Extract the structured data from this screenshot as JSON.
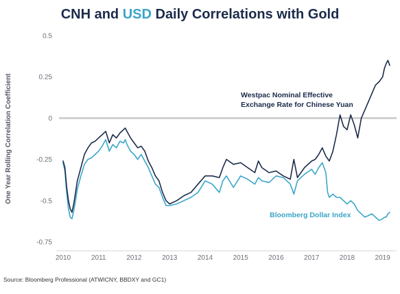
{
  "chart_data": {
    "type": "line",
    "title_parts": [
      "CNH",
      " and ",
      "USD",
      " Daily Correlations with Gold"
    ],
    "ylabel": "One Year Rolling Correlation Coefficient",
    "source": "Source: Bloomberg Professional (ATWICNY, BBDXY and GC1)",
    "xlim": [
      2010,
      2019.2
    ],
    "ylim": [
      -0.75,
      0.5
    ],
    "x_ticks": [
      2010,
      2011,
      2012,
      2013,
      2014,
      2015,
      2016,
      2017,
      2018,
      2019
    ],
    "x_tick_labels": [
      "2010",
      "2011",
      "2012",
      "2013",
      "2014",
      "2015",
      "2016",
      "2017",
      "2018",
      "2019"
    ],
    "y_ticks": [
      0.5,
      0.25,
      0,
      -0.25,
      -0.5,
      -0.75
    ],
    "y_tick_labels": [
      "0.5",
      "0.25",
      "0",
      "-0.25",
      "-0.5",
      "-0.75"
    ],
    "zero_line": true,
    "grid": false,
    "colors": {
      "cnh": "#1c2b4a",
      "usd": "#3aa6c8",
      "zero": "#c8c8c8",
      "axis": "#d5d5d5"
    },
    "series": [
      {
        "name": "Westpac Nominal Effective Exchange Rate for Chinese Yuan",
        "label_lines": [
          "Westpac Nominal Effective",
          "Exchange Rate for Chinese Yuan"
        ],
        "color": "#1c2b4a",
        "x": [
          2010.0,
          2010.05,
          2010.1,
          2010.15,
          2010.2,
          2010.25,
          2010.3,
          2010.35,
          2010.4,
          2010.5,
          2010.6,
          2010.7,
          2010.8,
          2010.9,
          2011.0,
          2011.1,
          2011.2,
          2011.3,
          2011.4,
          2011.5,
          2011.6,
          2011.7,
          2011.75,
          2011.8,
          2011.9,
          2012.0,
          2012.1,
          2012.2,
          2012.3,
          2012.4,
          2012.5,
          2012.6,
          2012.7,
          2012.8,
          2012.9,
          2013.0,
          2013.2,
          2013.4,
          2013.6,
          2013.8,
          2014.0,
          2014.2,
          2014.4,
          2014.5,
          2014.6,
          2014.8,
          2015.0,
          2015.2,
          2015.4,
          2015.5,
          2015.6,
          2015.8,
          2016.0,
          2016.2,
          2016.4,
          2016.5,
          2016.6,
          2016.8,
          2017.0,
          2017.1,
          2017.2,
          2017.3,
          2017.4,
          2017.5,
          2017.6,
          2017.7,
          2017.8,
          2017.9,
          2018.0,
          2018.1,
          2018.2,
          2018.3,
          2018.4,
          2018.5,
          2018.6,
          2018.7,
          2018.8,
          2018.9,
          2019.0,
          2019.05,
          2019.1,
          2019.15,
          2019.2
        ],
        "y": [
          -0.26,
          -0.3,
          -0.42,
          -0.5,
          -0.55,
          -0.57,
          -0.52,
          -0.45,
          -0.38,
          -0.3,
          -0.22,
          -0.18,
          -0.15,
          -0.14,
          -0.12,
          -0.1,
          -0.08,
          -0.15,
          -0.1,
          -0.12,
          -0.09,
          -0.07,
          -0.06,
          -0.08,
          -0.12,
          -0.15,
          -0.18,
          -0.17,
          -0.2,
          -0.26,
          -0.3,
          -0.35,
          -0.38,
          -0.45,
          -0.5,
          -0.52,
          -0.5,
          -0.47,
          -0.45,
          -0.4,
          -0.35,
          -0.35,
          -0.36,
          -0.3,
          -0.25,
          -0.28,
          -0.27,
          -0.3,
          -0.33,
          -0.26,
          -0.3,
          -0.33,
          -0.32,
          -0.35,
          -0.37,
          -0.25,
          -0.36,
          -0.3,
          -0.26,
          -0.25,
          -0.22,
          -0.18,
          -0.23,
          -0.26,
          -0.2,
          -0.1,
          0.02,
          -0.05,
          -0.07,
          0.02,
          -0.04,
          -0.12,
          0.0,
          0.05,
          0.1,
          0.15,
          0.2,
          0.22,
          0.25,
          0.3,
          0.33,
          0.35,
          0.32
        ]
      },
      {
        "name": "Bloomberg Dollar Index",
        "label_lines": [
          "Bloomberg Dollar Index"
        ],
        "color": "#3aa6c8",
        "x": [
          2010.0,
          2010.05,
          2010.1,
          2010.15,
          2010.2,
          2010.25,
          2010.3,
          2010.35,
          2010.4,
          2010.5,
          2010.6,
          2010.7,
          2010.8,
          2010.9,
          2011.0,
          2011.1,
          2011.2,
          2011.3,
          2011.4,
          2011.5,
          2011.6,
          2011.7,
          2011.75,
          2011.8,
          2011.9,
          2012.0,
          2012.1,
          2012.2,
          2012.3,
          2012.4,
          2012.5,
          2012.6,
          2012.7,
          2012.8,
          2012.9,
          2013.0,
          2013.2,
          2013.4,
          2013.6,
          2013.8,
          2014.0,
          2014.2,
          2014.4,
          2014.5,
          2014.6,
          2014.8,
          2015.0,
          2015.2,
          2015.4,
          2015.5,
          2015.6,
          2015.8,
          2016.0,
          2016.2,
          2016.4,
          2016.5,
          2016.6,
          2016.8,
          2017.0,
          2017.1,
          2017.2,
          2017.3,
          2017.4,
          2017.45,
          2017.5,
          2017.6,
          2017.7,
          2017.8,
          2017.9,
          2018.0,
          2018.1,
          2018.2,
          2018.3,
          2018.4,
          2018.5,
          2018.6,
          2018.7,
          2018.8,
          2018.9,
          2019.0,
          2019.05,
          2019.1,
          2019.15,
          2019.2
        ],
        "y": [
          -0.27,
          -0.32,
          -0.45,
          -0.55,
          -0.6,
          -0.61,
          -0.56,
          -0.5,
          -0.43,
          -0.35,
          -0.28,
          -0.25,
          -0.24,
          -0.22,
          -0.2,
          -0.17,
          -0.13,
          -0.2,
          -0.16,
          -0.18,
          -0.14,
          -0.15,
          -0.13,
          -0.16,
          -0.2,
          -0.22,
          -0.25,
          -0.22,
          -0.26,
          -0.3,
          -0.35,
          -0.4,
          -0.42,
          -0.48,
          -0.53,
          -0.53,
          -0.52,
          -0.5,
          -0.48,
          -0.45,
          -0.38,
          -0.4,
          -0.45,
          -0.38,
          -0.35,
          -0.42,
          -0.35,
          -0.37,
          -0.4,
          -0.36,
          -0.38,
          -0.39,
          -0.35,
          -0.36,
          -0.4,
          -0.46,
          -0.38,
          -0.34,
          -0.31,
          -0.34,
          -0.3,
          -0.27,
          -0.33,
          -0.45,
          -0.48,
          -0.46,
          -0.48,
          -0.48,
          -0.5,
          -0.52,
          -0.5,
          -0.52,
          -0.56,
          -0.58,
          -0.6,
          -0.59,
          -0.58,
          -0.6,
          -0.62,
          -0.61,
          -0.6,
          -0.6,
          -0.58,
          -0.57
        ]
      }
    ]
  }
}
